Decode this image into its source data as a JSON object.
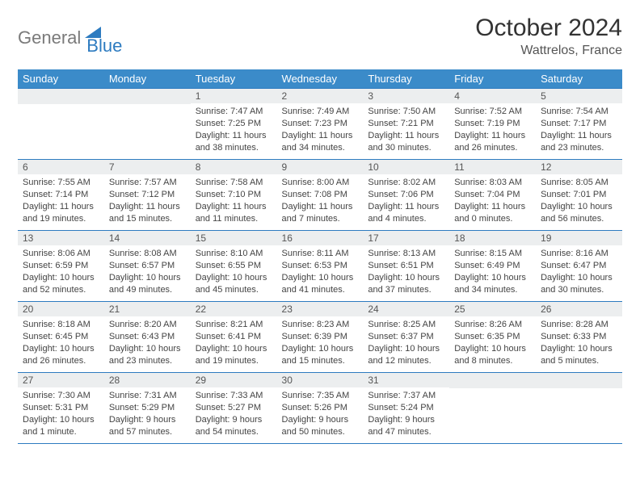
{
  "brand": {
    "text_general": "General",
    "text_blue": "Blue",
    "general_color": "#7a7a7a",
    "blue_color": "#2d7bc0"
  },
  "title": "October 2024",
  "location": "Wattrelos, France",
  "header_bg": "#3b8bc9",
  "header_fg": "#ffffff",
  "daynum_bg": "#eceeef",
  "border_color": "#2d7bc0",
  "text_color": "#444444",
  "font_family": "Arial",
  "day_names": [
    "Sunday",
    "Monday",
    "Tuesday",
    "Wednesday",
    "Thursday",
    "Friday",
    "Saturday"
  ],
  "weeks": [
    [
      null,
      null,
      {
        "n": "1",
        "sunrise": "7:47 AM",
        "sunset": "7:25 PM",
        "daylight": "11 hours and 38 minutes."
      },
      {
        "n": "2",
        "sunrise": "7:49 AM",
        "sunset": "7:23 PM",
        "daylight": "11 hours and 34 minutes."
      },
      {
        "n": "3",
        "sunrise": "7:50 AM",
        "sunset": "7:21 PM",
        "daylight": "11 hours and 30 minutes."
      },
      {
        "n": "4",
        "sunrise": "7:52 AM",
        "sunset": "7:19 PM",
        "daylight": "11 hours and 26 minutes."
      },
      {
        "n": "5",
        "sunrise": "7:54 AM",
        "sunset": "7:17 PM",
        "daylight": "11 hours and 23 minutes."
      }
    ],
    [
      {
        "n": "6",
        "sunrise": "7:55 AM",
        "sunset": "7:14 PM",
        "daylight": "11 hours and 19 minutes."
      },
      {
        "n": "7",
        "sunrise": "7:57 AM",
        "sunset": "7:12 PM",
        "daylight": "11 hours and 15 minutes."
      },
      {
        "n": "8",
        "sunrise": "7:58 AM",
        "sunset": "7:10 PM",
        "daylight": "11 hours and 11 minutes."
      },
      {
        "n": "9",
        "sunrise": "8:00 AM",
        "sunset": "7:08 PM",
        "daylight": "11 hours and 7 minutes."
      },
      {
        "n": "10",
        "sunrise": "8:02 AM",
        "sunset": "7:06 PM",
        "daylight": "11 hours and 4 minutes."
      },
      {
        "n": "11",
        "sunrise": "8:03 AM",
        "sunset": "7:04 PM",
        "daylight": "11 hours and 0 minutes."
      },
      {
        "n": "12",
        "sunrise": "8:05 AM",
        "sunset": "7:01 PM",
        "daylight": "10 hours and 56 minutes."
      }
    ],
    [
      {
        "n": "13",
        "sunrise": "8:06 AM",
        "sunset": "6:59 PM",
        "daylight": "10 hours and 52 minutes."
      },
      {
        "n": "14",
        "sunrise": "8:08 AM",
        "sunset": "6:57 PM",
        "daylight": "10 hours and 49 minutes."
      },
      {
        "n": "15",
        "sunrise": "8:10 AM",
        "sunset": "6:55 PM",
        "daylight": "10 hours and 45 minutes."
      },
      {
        "n": "16",
        "sunrise": "8:11 AM",
        "sunset": "6:53 PM",
        "daylight": "10 hours and 41 minutes."
      },
      {
        "n": "17",
        "sunrise": "8:13 AM",
        "sunset": "6:51 PM",
        "daylight": "10 hours and 37 minutes."
      },
      {
        "n": "18",
        "sunrise": "8:15 AM",
        "sunset": "6:49 PM",
        "daylight": "10 hours and 34 minutes."
      },
      {
        "n": "19",
        "sunrise": "8:16 AM",
        "sunset": "6:47 PM",
        "daylight": "10 hours and 30 minutes."
      }
    ],
    [
      {
        "n": "20",
        "sunrise": "8:18 AM",
        "sunset": "6:45 PM",
        "daylight": "10 hours and 26 minutes."
      },
      {
        "n": "21",
        "sunrise": "8:20 AM",
        "sunset": "6:43 PM",
        "daylight": "10 hours and 23 minutes."
      },
      {
        "n": "22",
        "sunrise": "8:21 AM",
        "sunset": "6:41 PM",
        "daylight": "10 hours and 19 minutes."
      },
      {
        "n": "23",
        "sunrise": "8:23 AM",
        "sunset": "6:39 PM",
        "daylight": "10 hours and 15 minutes."
      },
      {
        "n": "24",
        "sunrise": "8:25 AM",
        "sunset": "6:37 PM",
        "daylight": "10 hours and 12 minutes."
      },
      {
        "n": "25",
        "sunrise": "8:26 AM",
        "sunset": "6:35 PM",
        "daylight": "10 hours and 8 minutes."
      },
      {
        "n": "26",
        "sunrise": "8:28 AM",
        "sunset": "6:33 PM",
        "daylight": "10 hours and 5 minutes."
      }
    ],
    [
      {
        "n": "27",
        "sunrise": "7:30 AM",
        "sunset": "5:31 PM",
        "daylight": "10 hours and 1 minute."
      },
      {
        "n": "28",
        "sunrise": "7:31 AM",
        "sunset": "5:29 PM",
        "daylight": "9 hours and 57 minutes."
      },
      {
        "n": "29",
        "sunrise": "7:33 AM",
        "sunset": "5:27 PM",
        "daylight": "9 hours and 54 minutes."
      },
      {
        "n": "30",
        "sunrise": "7:35 AM",
        "sunset": "5:26 PM",
        "daylight": "9 hours and 50 minutes."
      },
      {
        "n": "31",
        "sunrise": "7:37 AM",
        "sunset": "5:24 PM",
        "daylight": "9 hours and 47 minutes."
      },
      null,
      null
    ]
  ],
  "labels": {
    "sunrise": "Sunrise:",
    "sunset": "Sunset:",
    "daylight": "Daylight:"
  }
}
